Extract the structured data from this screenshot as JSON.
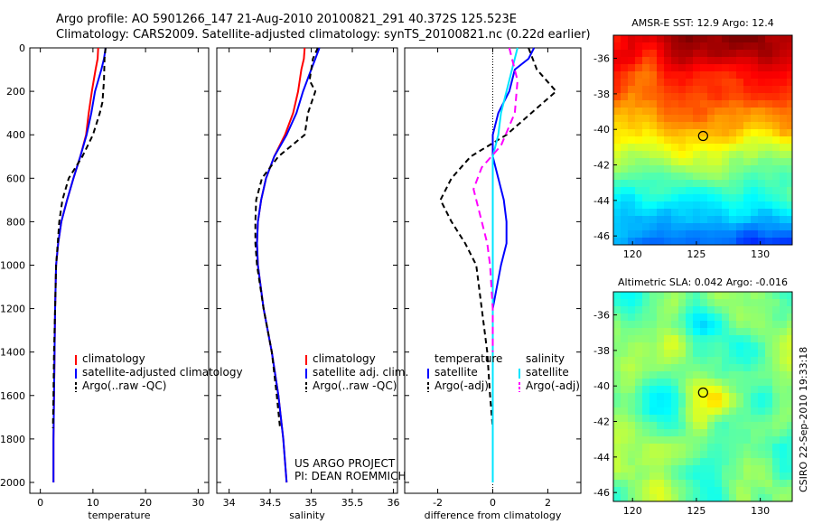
{
  "header": {
    "line1": "Argo profile: AO 5901266_147 21-Aug-2010 20100821_291 40.372S 125.523E",
    "line2": "Climatology: CARS2009. Satellite-adjusted climatology: synTS_20100821.nc (0.22d earlier)"
  },
  "side_stamp": "CSIRO 22-Sep-2010 19:33:18",
  "project": {
    "line1": "US ARGO PROJECT",
    "line2": "PI: DEAN ROEMMICH"
  },
  "colors": {
    "climatology": "#ff0000",
    "satellite": "#0000ff",
    "argo": "#000000",
    "satellite_diff": "#00e5ff",
    "argo_adj_diff": "#ff00ff"
  },
  "chart_data": [
    {
      "id": "temperature",
      "type": "line",
      "xlabel": "temperature",
      "ylabel": "",
      "xlim": [
        -2,
        32
      ],
      "ylim": [
        2050,
        0
      ],
      "xticks": [
        0,
        10,
        20,
        30
      ],
      "yticks": [
        0,
        200,
        400,
        600,
        800,
        1000,
        1200,
        1400,
        1600,
        1800,
        2000
      ],
      "legend": [
        "climatology",
        "satellite-adjusted climatology",
        "Argo(..raw -QC)"
      ],
      "series": [
        {
          "name": "climatology",
          "color": "#ff0000",
          "dash": "",
          "x": [
            11.0,
            10.9,
            10.5,
            9.8,
            9.2,
            8.7,
            7.6,
            6.3,
            5.1,
            4.0,
            3.4,
            3.0,
            2.8,
            2.7,
            2.6,
            2.5,
            2.5
          ],
          "y": [
            0,
            50,
            100,
            200,
            300,
            400,
            500,
            600,
            700,
            800,
            900,
            1000,
            1200,
            1400,
            1600,
            1800,
            2000
          ]
        },
        {
          "name": "satellite-adjusted climatology",
          "color": "#0000ff",
          "dash": "",
          "x": [
            12.4,
            12.1,
            11.6,
            10.4,
            9.7,
            8.8,
            7.6,
            6.3,
            5.1,
            4.0,
            3.4,
            3.0,
            2.8,
            2.7,
            2.6,
            2.5,
            2.5
          ],
          "y": [
            0,
            50,
            100,
            200,
            300,
            400,
            500,
            600,
            700,
            800,
            900,
            1000,
            1200,
            1400,
            1600,
            1800,
            2000
          ]
        },
        {
          "name": "Argo(..raw -QC)",
          "color": "#000000",
          "dash": "6,4",
          "x": [
            12.4,
            12.2,
            12.1,
            11.8,
            11.3,
            10.0,
            8.0,
            5.4,
            4.2,
            3.6,
            3.3,
            3.0,
            2.8,
            2.6,
            2.5,
            2.4
          ],
          "y": [
            0,
            50,
            150,
            250,
            300,
            400,
            500,
            600,
            700,
            800,
            900,
            1000,
            1200,
            1400,
            1600,
            1750
          ]
        }
      ]
    },
    {
      "id": "salinity",
      "type": "line",
      "xlabel": "salinity",
      "ylabel": "",
      "xlim": [
        33.85,
        36.05
      ],
      "ylim": [
        2050,
        0
      ],
      "xticks": [
        34,
        34.5,
        35,
        35.5,
        36
      ],
      "xticklabels": [
        "34",
        "34.5",
        "35",
        "35.5",
        "36"
      ],
      "legend": [
        "climatology",
        "satellite adj. clim.",
        "Argo(..raw -QC)"
      ],
      "series": [
        {
          "name": "climatology",
          "color": "#ff0000",
          "dash": "",
          "x": [
            34.92,
            34.91,
            34.88,
            34.84,
            34.78,
            34.68,
            34.55,
            34.45,
            34.39,
            34.35,
            34.34,
            34.35,
            34.42,
            34.52,
            34.6,
            34.66,
            34.7
          ],
          "y": [
            0,
            50,
            100,
            200,
            300,
            400,
            500,
            600,
            700,
            800,
            900,
            1000,
            1200,
            1400,
            1600,
            1800,
            2000
          ]
        },
        {
          "name": "satellite adj. clim.",
          "color": "#0000ff",
          "dash": "",
          "x": [
            35.1,
            35.05,
            35.0,
            34.9,
            34.82,
            34.7,
            34.55,
            34.45,
            34.39,
            34.35,
            34.34,
            34.35,
            34.42,
            34.52,
            34.6,
            34.66,
            34.7
          ],
          "y": [
            0,
            50,
            100,
            200,
            300,
            400,
            500,
            600,
            700,
            800,
            900,
            1000,
            1200,
            1400,
            1600,
            1800,
            2000
          ]
        },
        {
          "name": "Argo(..raw -QC)",
          "color": "#000000",
          "dash": "6,4",
          "x": [
            35.08,
            35.02,
            34.98,
            35.05,
            34.96,
            34.92,
            34.6,
            34.4,
            34.33,
            34.32,
            34.32,
            34.34,
            34.42,
            34.52,
            34.58,
            34.62
          ],
          "y": [
            0,
            50,
            150,
            200,
            300,
            400,
            500,
            600,
            700,
            800,
            900,
            1000,
            1200,
            1400,
            1600,
            1750
          ]
        }
      ]
    },
    {
      "id": "difference",
      "type": "line",
      "xlabel": "difference from climatology",
      "ylabel": "",
      "xlim": [
        -3.2,
        3.2
      ],
      "ylim": [
        2050,
        0
      ],
      "xticks": [
        -2,
        0,
        2
      ],
      "legend": {
        "temperature_header": "temperature",
        "salinity_header": "salinity",
        "items": [
          "satellite",
          "Argo(-adj)",
          "satellite",
          "Argo(-adj)"
        ]
      },
      "series": [
        {
          "name": "satellite",
          "group": "temperature",
          "color": "#0000ff",
          "dash": "",
          "x": [
            1.5,
            1.3,
            0.8,
            0.6,
            0.2,
            0.0,
            0.0,
            0.2,
            0.4,
            0.5,
            0.5,
            0.3,
            0.0,
            0.0,
            0.0,
            0.0,
            0.0
          ],
          "y": [
            0,
            50,
            100,
            200,
            300,
            400,
            500,
            600,
            700,
            800,
            900,
            1000,
            1200,
            1400,
            1600,
            1800,
            2000
          ]
        },
        {
          "name": "Argo(-adj)",
          "group": "temperature",
          "color": "#000000",
          "dash": "6,4",
          "x": [
            1.3,
            1.6,
            2.3,
            1.4,
            0.5,
            -0.8,
            -1.5,
            -1.9,
            -1.5,
            -1.0,
            -0.6,
            -0.4,
            -0.2,
            -0.1,
            0.0
          ],
          "y": [
            0,
            100,
            200,
            300,
            400,
            500,
            600,
            700,
            800,
            900,
            1000,
            1200,
            1400,
            1600,
            1750
          ]
        },
        {
          "name": "satellite",
          "group": "salinity",
          "color": "#00e5ff",
          "dash": "",
          "x": [
            0.9,
            0.7,
            0.5,
            0.3,
            0.2,
            0.0,
            0.0,
            0.0,
            0.0,
            0.0,
            0.0,
            0.0,
            0.0
          ],
          "y": [
            0,
            100,
            200,
            300,
            400,
            500,
            600,
            800,
            1000,
            1200,
            1400,
            1600,
            2000
          ]
        },
        {
          "name": "Argo(-adj)",
          "group": "salinity",
          "color": "#ff00ff",
          "dash": "8,5",
          "x": [
            0.6,
            0.7,
            0.9,
            0.8,
            0.3,
            -0.4,
            -0.7,
            -0.5,
            -0.2,
            -0.1,
            0.0,
            0.0
          ],
          "y": [
            0,
            50,
            150,
            300,
            450,
            550,
            650,
            750,
            900,
            1000,
            1200,
            1400
          ]
        }
      ]
    },
    {
      "id": "sst_map",
      "type": "heatmap",
      "title": "AMSR-E SST: 12.9 Argo: 12.4",
      "xticks": [
        120,
        125,
        130
      ],
      "yticks": [
        -36,
        -38,
        -40,
        -42,
        -44,
        -46
      ],
      "xlim": [
        118.5,
        132.5
      ],
      "ylim": [
        -46.5,
        -34.7
      ],
      "marker": {
        "lon": 125.523,
        "lat": -40.372
      }
    },
    {
      "id": "sla_map",
      "type": "heatmap",
      "title": "Altimetric SLA: 0.042 Argo: -0.016",
      "xticks": [
        120,
        125,
        130
      ],
      "yticks": [
        -36,
        -38,
        -40,
        -42,
        -44,
        -46
      ],
      "xlim": [
        118.5,
        132.5
      ],
      "ylim": [
        -46.5,
        -34.7
      ],
      "marker": {
        "lon": 125.523,
        "lat": -40.372
      }
    }
  ]
}
